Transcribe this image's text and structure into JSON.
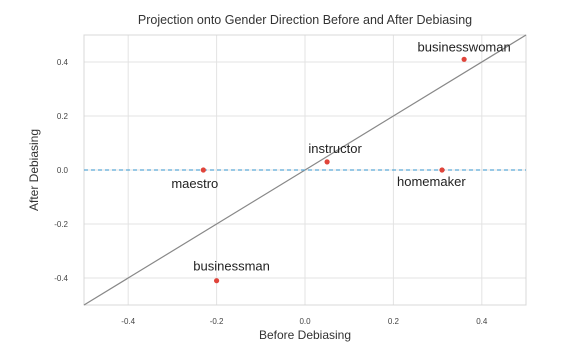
{
  "chart_data": {
    "type": "scatter",
    "title": "Projection onto Gender Direction Before and After Debiasing",
    "xlabel": "Before Debiasing",
    "ylabel": "After Debiasing",
    "xlim": [
      -0.5,
      0.5
    ],
    "ylim": [
      -0.5,
      0.5
    ],
    "xticks": [
      -0.4,
      -0.2,
      0.0,
      0.2,
      0.4
    ],
    "xtick_labels": [
      "-0.4",
      "-0.2",
      "0.0",
      "0.2",
      "0.4"
    ],
    "yticks": [
      -0.4,
      -0.2,
      0.0,
      0.2,
      0.4
    ],
    "ytick_labels": [
      "-0.4",
      "-0.2",
      "0.0",
      "0.2",
      "0.4"
    ],
    "grid": true,
    "points": [
      {
        "label": "businesswoman",
        "x": 0.36,
        "y": 0.41
      },
      {
        "label": "instructor",
        "x": 0.05,
        "y": 0.03
      },
      {
        "label": "maestro",
        "x": -0.23,
        "y": 0.0
      },
      {
        "label": "homemaker",
        "x": 0.31,
        "y": 0.0
      },
      {
        "label": "businessman",
        "x": -0.2,
        "y": -0.41
      }
    ],
    "reference_lines": [
      {
        "kind": "diagonal",
        "equation": "y = x",
        "color": "#888888",
        "style": "solid"
      },
      {
        "kind": "horizontal",
        "y": 0.0,
        "color": "#5aa9d6",
        "style": "dashed"
      }
    ],
    "point_color": "#e0443a"
  }
}
